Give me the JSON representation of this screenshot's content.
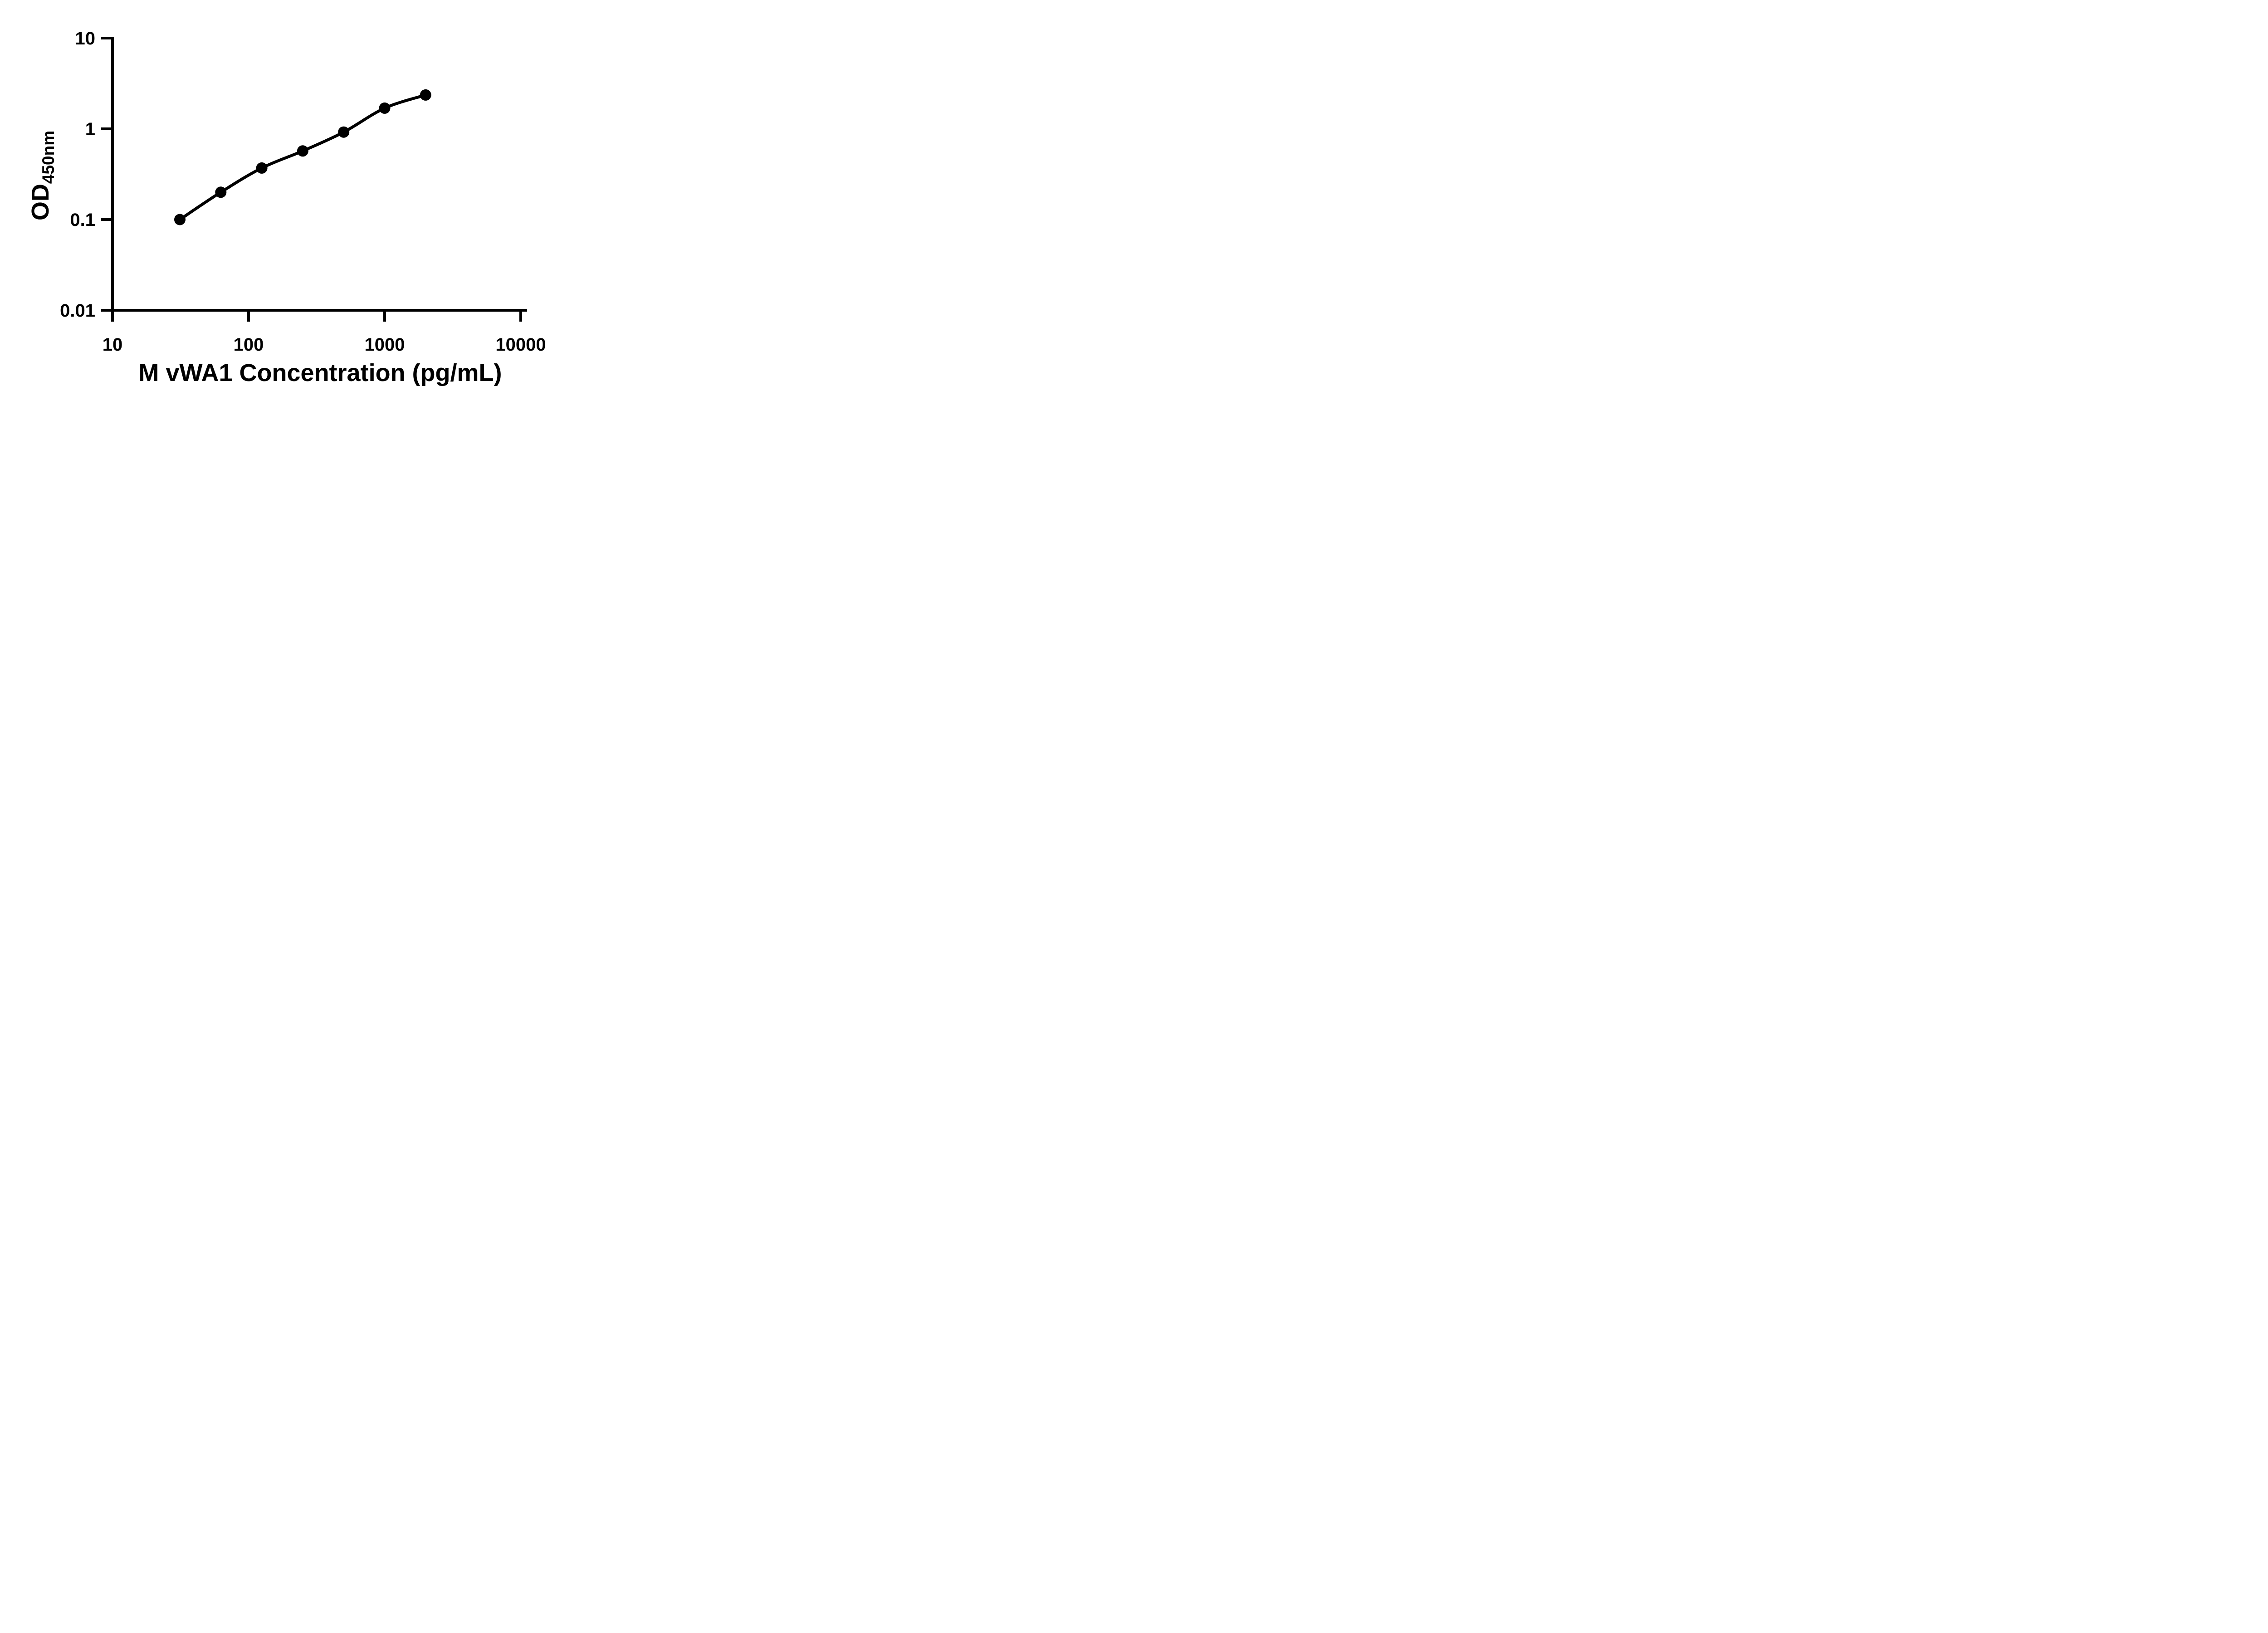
{
  "figure": {
    "background_color": "#ffffff",
    "foreground_color": "#000000"
  },
  "chart_data": {
    "type": "scatter",
    "title": "",
    "xlabel": "M vWA1 Concentration (pg/mL)",
    "ylabel": "OD450nm",
    "ylabel_main": "OD",
    "ylabel_sub": "450nm",
    "x_scale": "log10",
    "y_scale": "log10",
    "xlim": [
      10,
      10000
    ],
    "ylim": [
      0.01,
      10
    ],
    "grid": false,
    "legend": null,
    "line_color": "#000000",
    "marker_color": "#000000",
    "marker_shape": "filled-circle",
    "fit": "four-parameter-logistic smooth curve through points",
    "x_ticks": [
      {
        "value": 10,
        "label": "10"
      },
      {
        "value": 100,
        "label": "100"
      },
      {
        "value": 1000,
        "label": "1000"
      },
      {
        "value": 10000,
        "label": "10000"
      }
    ],
    "y_ticks": [
      {
        "value": 10,
        "label": "10"
      },
      {
        "value": 1,
        "label": "1"
      },
      {
        "value": 0.1,
        "label": "0.1"
      },
      {
        "value": 0.01,
        "label": "0.01"
      }
    ],
    "points": [
      {
        "x": 31.25,
        "y": 0.1
      },
      {
        "x": 62.5,
        "y": 0.2
      },
      {
        "x": 125,
        "y": 0.37
      },
      {
        "x": 250,
        "y": 0.57
      },
      {
        "x": 500,
        "y": 0.92
      },
      {
        "x": 1000,
        "y": 1.69
      },
      {
        "x": 2000,
        "y": 2.36
      }
    ]
  }
}
